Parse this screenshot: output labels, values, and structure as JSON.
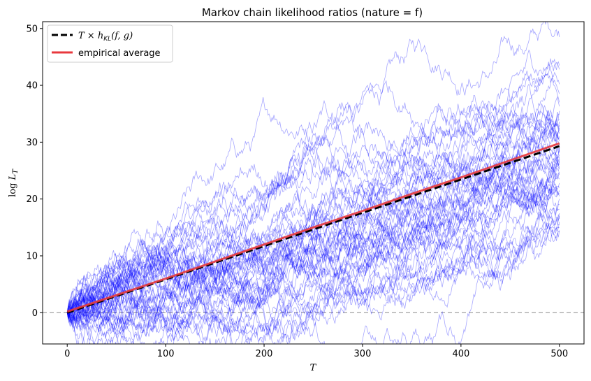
{
  "chart_data": {
    "type": "line",
    "title": "Markov chain likelihood ratios (nature = f)",
    "xlabel": "T",
    "ylabel": "log L_T",
    "ylabel_display": {
      "main": "log ",
      "var": "L",
      "sub": "T"
    },
    "xlim": [
      -25,
      525
    ],
    "ylim": [
      -5.5,
      51.2
    ],
    "xticks": [
      0,
      100,
      200,
      300,
      400,
      500
    ],
    "yticks": [
      0,
      10,
      20,
      30,
      40,
      50
    ],
    "grid": false,
    "legend_position": "top-left",
    "series": [
      {
        "name": "T × h_KL(f, g)",
        "legend_display": "T × h",
        "legend_sub": "KL",
        "legend_args": "(f, g)",
        "style": "dashed",
        "color": "#000000",
        "x": [
          0,
          500
        ],
        "y": [
          0,
          29.3
        ]
      },
      {
        "name": "empirical average",
        "style": "solid",
        "color": "#e8383d",
        "x": [
          0,
          50,
          100,
          150,
          200,
          250,
          300,
          350,
          400,
          450,
          500
        ],
        "y": [
          0.2,
          3.1,
          6.0,
          9.0,
          12.0,
          15.0,
          17.9,
          20.9,
          23.8,
          26.8,
          29.8
        ]
      }
    ],
    "sample_paths": {
      "count": 50,
      "color": "#0000ff",
      "final_values": [
        48.5,
        43.5,
        42.8,
        40.2,
        38.5,
        37.0,
        36.3,
        35.5,
        35.0,
        34.0,
        33.6,
        33.0,
        32.5,
        32.0,
        31.5,
        31.0,
        30.6,
        30.2,
        29.8,
        29.5,
        29.0,
        28.6,
        28.2,
        27.8,
        27.4,
        27.0,
        26.6,
        26.2,
        25.8,
        25.3,
        24.8,
        24.3,
        23.5,
        22.8,
        22.0,
        21.5,
        21.0,
        20.5,
        20.0,
        19.0,
        18.2,
        17.5,
        17.0,
        16.5,
        16.0,
        15.5,
        15.0,
        14.5,
        14.2,
        29.0
      ]
    },
    "reference_line": {
      "y": 0,
      "style": "dashed",
      "color": "#b0b0b0"
    }
  }
}
